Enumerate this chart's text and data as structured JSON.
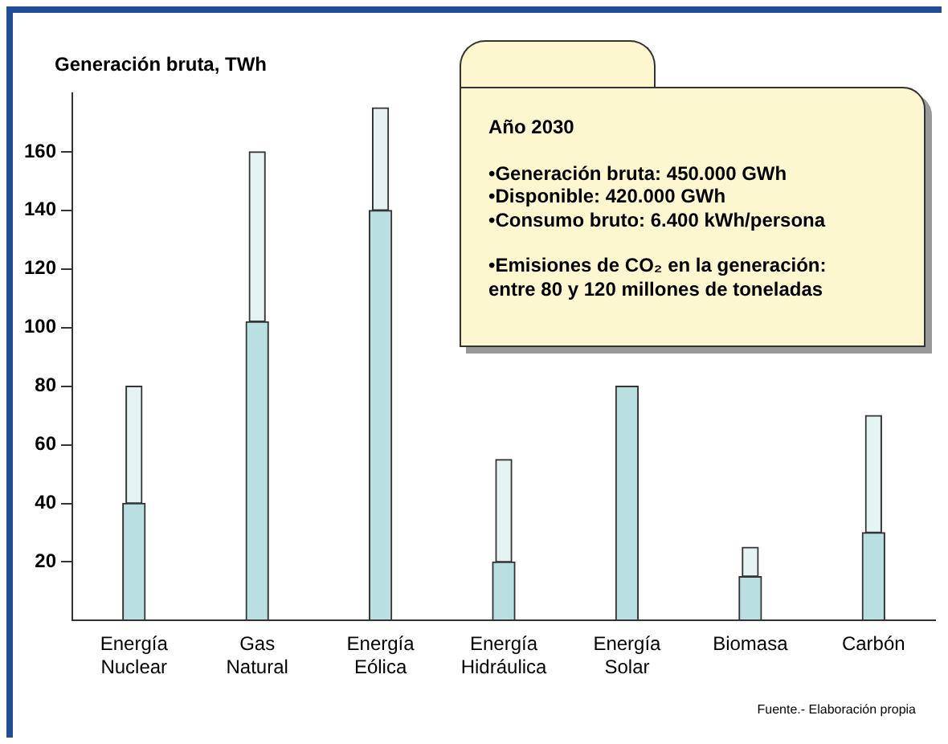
{
  "chart_data": {
    "type": "bar",
    "ylabel": "Generación bruta, TWh",
    "categories": [
      "Energía Nuclear",
      "Gas Natural",
      "Energía Eólica",
      "Energía Hidráulica",
      "Energía Solar",
      "Biomasa",
      "Carbón"
    ],
    "stacked": true,
    "series": [
      {
        "color": "#b9dfe0",
        "values": [
          40,
          102,
          140,
          20,
          80,
          15,
          30
        ]
      },
      {
        "color": "#e6f3f3",
        "values": [
          40,
          58,
          35,
          35,
          0,
          10,
          40
        ]
      }
    ],
    "ylim": [
      0,
      180
    ],
    "yticks": [
      20,
      40,
      60,
      80,
      100,
      120,
      140,
      160
    ],
    "grid": false,
    "legend": false,
    "annotations": [
      "Año 2030",
      "•Generación bruta: 450.000 GWh",
      "•Disponible: 420.000 GWh",
      "•Consumo bruto: 6.400 kWh/persona",
      "•Emisiones de CO₂ en la generación: entre 80 y 120 millones de toneladas",
      "Fuente.- Elaboración propia"
    ]
  }
}
